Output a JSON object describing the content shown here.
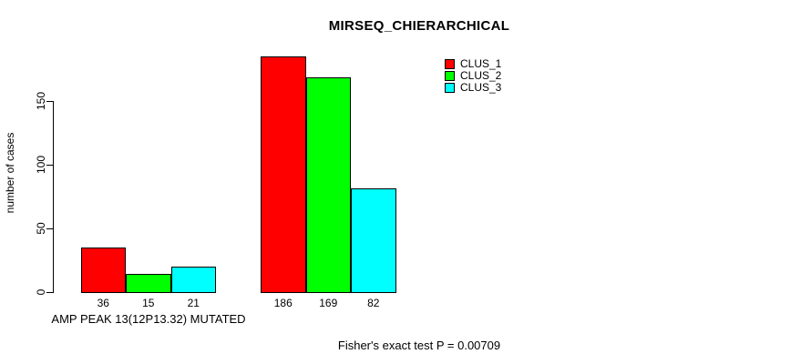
{
  "title": "MIRSEQ_CHIERARCHICAL",
  "footer": "Fisher's exact test P = 0.00709",
  "colors": {
    "clus_1": "#FF0000",
    "clus_2": "#00FF00",
    "clus_3": "#00FFFF",
    "axis": "#000000",
    "background": "#FFFFFF"
  },
  "chart_data": {
    "type": "bar",
    "title": "MIRSEQ_CHIERARCHICAL",
    "xlabel": "AMP PEAK 13(12P13.32) MUTATED",
    "ylabel": "number of cases",
    "categories": [
      "AMP PEAK 13(12P13.32) MUTATED",
      ""
    ],
    "series": [
      {
        "name": "CLUS_1",
        "color": "#FF0000",
        "values": [
          36,
          186
        ]
      },
      {
        "name": "CLUS_2",
        "color": "#00FF00",
        "values": [
          15,
          169
        ]
      },
      {
        "name": "CLUS_3",
        "color": "#00FFFF",
        "values": [
          21,
          82
        ]
      }
    ],
    "bar_value_labels": [
      [
        36,
        15,
        21
      ],
      [
        186,
        169,
        82
      ]
    ],
    "yticks": [
      0,
      50,
      100,
      150
    ],
    "ylim": [
      0,
      190
    ],
    "grid": "off",
    "legend_position": "top-right",
    "annotation": "Fisher's exact test P = 0.00709"
  }
}
